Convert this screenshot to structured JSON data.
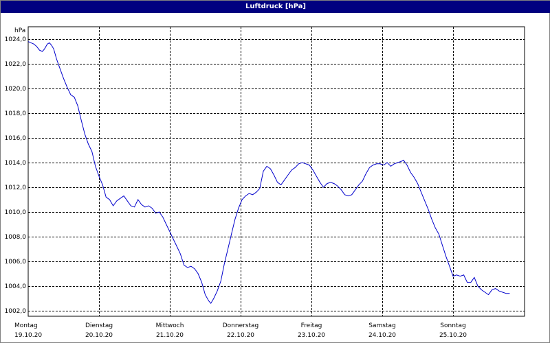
{
  "window": {
    "title": "Luftdruck [hPa]"
  },
  "colors": {
    "line": "#0000cc",
    "grid": "#000000",
    "frame": "#000000",
    "title_bg": "#000080"
  },
  "chart_data": {
    "type": "line",
    "title": "Luftdruck [hPa]",
    "ylabel": "hPa",
    "ylim": [
      1002,
      1024
    ],
    "yticks": [
      1002,
      1004,
      1006,
      1008,
      1010,
      1012,
      1014,
      1016,
      1018,
      1020,
      1022,
      1024
    ],
    "ytick_labels": [
      "1002,0",
      "1004,0",
      "1006,0",
      "1008,0",
      "1010,0",
      "1012,0",
      "1014,0",
      "1016,0",
      "1018,0",
      "1020,0",
      "1022,0",
      "1024,0"
    ],
    "xlim": [
      0,
      7
    ],
    "xticks": [
      {
        "pos": 0,
        "day": "Montag",
        "date": "19.10.20"
      },
      {
        "pos": 1,
        "day": "Dienstag",
        "date": "20.10.20"
      },
      {
        "pos": 2,
        "day": "Mittwoch",
        "date": "21.10.20"
      },
      {
        "pos": 3,
        "day": "Donnerstag",
        "date": "22.10.20"
      },
      {
        "pos": 4,
        "day": "Freitag",
        "date": "23.10.20"
      },
      {
        "pos": 5,
        "day": "Samstag",
        "date": "24.10.20"
      },
      {
        "pos": 6,
        "day": "Sonntag",
        "date": "25.10.20"
      }
    ],
    "grid": true,
    "series": [
      {
        "points": [
          [
            0.0,
            1023.8
          ],
          [
            0.04,
            1023.7
          ],
          [
            0.08,
            1023.6
          ],
          [
            0.12,
            1023.4
          ],
          [
            0.16,
            1023.1
          ],
          [
            0.2,
            1023.0
          ],
          [
            0.23,
            1023.2
          ],
          [
            0.27,
            1023.6
          ],
          [
            0.3,
            1023.7
          ],
          [
            0.33,
            1023.5
          ],
          [
            0.36,
            1023.2
          ],
          [
            0.4,
            1022.4
          ],
          [
            0.45,
            1021.6
          ],
          [
            0.5,
            1020.8
          ],
          [
            0.55,
            1020.1
          ],
          [
            0.6,
            1019.5
          ],
          [
            0.65,
            1019.3
          ],
          [
            0.7,
            1018.6
          ],
          [
            0.75,
            1017.4
          ],
          [
            0.8,
            1016.3
          ],
          [
            0.85,
            1015.5
          ],
          [
            0.9,
            1014.9
          ],
          [
            0.95,
            1013.7
          ],
          [
            1.0,
            1012.9
          ],
          [
            1.05,
            1012.2
          ],
          [
            1.1,
            1011.2
          ],
          [
            1.15,
            1011.0
          ],
          [
            1.2,
            1010.5
          ],
          [
            1.25,
            1010.9
          ],
          [
            1.3,
            1011.1
          ],
          [
            1.35,
            1011.3
          ],
          [
            1.4,
            1010.9
          ],
          [
            1.45,
            1010.5
          ],
          [
            1.5,
            1010.4
          ],
          [
            1.55,
            1011.0
          ],
          [
            1.6,
            1010.6
          ],
          [
            1.65,
            1010.4
          ],
          [
            1.7,
            1010.5
          ],
          [
            1.75,
            1010.3
          ],
          [
            1.8,
            1009.9
          ],
          [
            1.85,
            1010.0
          ],
          [
            1.9,
            1009.6
          ],
          [
            1.95,
            1009.0
          ],
          [
            2.0,
            1008.4
          ],
          [
            2.05,
            1007.8
          ],
          [
            2.1,
            1007.2
          ],
          [
            2.15,
            1006.6
          ],
          [
            2.2,
            1005.7
          ],
          [
            2.25,
            1005.5
          ],
          [
            2.3,
            1005.6
          ],
          [
            2.35,
            1005.4
          ],
          [
            2.4,
            1005.0
          ],
          [
            2.45,
            1004.3
          ],
          [
            2.5,
            1003.3
          ],
          [
            2.55,
            1002.8
          ],
          [
            2.58,
            1002.6
          ],
          [
            2.62,
            1003.0
          ],
          [
            2.67,
            1003.6
          ],
          [
            2.72,
            1004.4
          ],
          [
            2.77,
            1005.8
          ],
          [
            2.82,
            1007.0
          ],
          [
            2.87,
            1008.2
          ],
          [
            2.92,
            1009.4
          ],
          [
            2.97,
            1010.3
          ],
          [
            3.02,
            1011.0
          ],
          [
            3.07,
            1011.3
          ],
          [
            3.12,
            1011.5
          ],
          [
            3.17,
            1011.4
          ],
          [
            3.22,
            1011.6
          ],
          [
            3.27,
            1011.9
          ],
          [
            3.32,
            1013.3
          ],
          [
            3.37,
            1013.7
          ],
          [
            3.42,
            1013.5
          ],
          [
            3.47,
            1013.0
          ],
          [
            3.52,
            1012.4
          ],
          [
            3.57,
            1012.2
          ],
          [
            3.62,
            1012.6
          ],
          [
            3.67,
            1013.0
          ],
          [
            3.72,
            1013.4
          ],
          [
            3.77,
            1013.6
          ],
          [
            3.82,
            1013.9
          ],
          [
            3.87,
            1014.0
          ],
          [
            3.92,
            1013.9
          ],
          [
            3.97,
            1013.8
          ],
          [
            4.02,
            1013.4
          ],
          [
            4.07,
            1012.9
          ],
          [
            4.12,
            1012.4
          ],
          [
            4.17,
            1012.0
          ],
          [
            4.22,
            1012.3
          ],
          [
            4.27,
            1012.4
          ],
          [
            4.32,
            1012.3
          ],
          [
            4.37,
            1012.1
          ],
          [
            4.42,
            1011.8
          ],
          [
            4.47,
            1011.4
          ],
          [
            4.52,
            1011.3
          ],
          [
            4.57,
            1011.4
          ],
          [
            4.62,
            1011.8
          ],
          [
            4.67,
            1012.2
          ],
          [
            4.72,
            1012.5
          ],
          [
            4.77,
            1013.1
          ],
          [
            4.82,
            1013.6
          ],
          [
            4.87,
            1013.8
          ],
          [
            4.92,
            1013.9
          ],
          [
            4.97,
            1013.9
          ],
          [
            5.02,
            1013.8
          ],
          [
            5.07,
            1014.0
          ],
          [
            5.12,
            1013.7
          ],
          [
            5.17,
            1013.9
          ],
          [
            5.22,
            1014.0
          ],
          [
            5.27,
            1014.1
          ],
          [
            5.3,
            1014.2
          ],
          [
            5.35,
            1013.8
          ],
          [
            5.4,
            1013.2
          ],
          [
            5.45,
            1012.8
          ],
          [
            5.5,
            1012.3
          ],
          [
            5.55,
            1011.6
          ],
          [
            5.6,
            1010.9
          ],
          [
            5.65,
            1010.2
          ],
          [
            5.7,
            1009.4
          ],
          [
            5.75,
            1008.7
          ],
          [
            5.8,
            1008.2
          ],
          [
            5.85,
            1007.3
          ],
          [
            5.9,
            1006.4
          ],
          [
            5.95,
            1005.6
          ],
          [
            6.0,
            1004.8
          ],
          [
            6.05,
            1004.9
          ],
          [
            6.1,
            1004.8
          ],
          [
            6.15,
            1004.9
          ],
          [
            6.2,
            1004.3
          ],
          [
            6.25,
            1004.3
          ],
          [
            6.3,
            1004.7
          ],
          [
            6.35,
            1004.0
          ],
          [
            6.4,
            1003.7
          ],
          [
            6.45,
            1003.5
          ],
          [
            6.5,
            1003.3
          ],
          [
            6.55,
            1003.7
          ],
          [
            6.6,
            1003.8
          ],
          [
            6.65,
            1003.6
          ],
          [
            6.7,
            1003.5
          ],
          [
            6.75,
            1003.4
          ],
          [
            6.8,
            1003.4
          ]
        ]
      }
    ]
  }
}
